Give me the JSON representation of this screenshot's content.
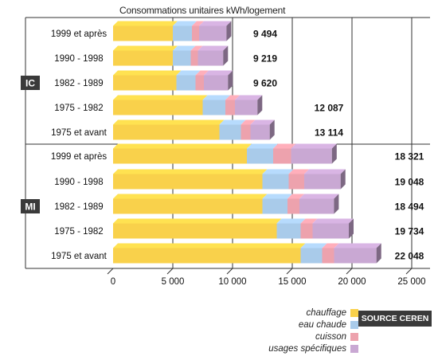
{
  "chart_data": {
    "type": "bar",
    "orientation": "horizontal",
    "stacked": true,
    "title": "Consommations unitaires kWh/logement",
    "source": "SOURCE CEREN",
    "xlim": [
      0,
      25000
    ],
    "xticks": [
      "0",
      "5 000",
      "10 000",
      "15 000",
      "20 000",
      "25 000"
    ],
    "xtick_values": [
      0,
      5000,
      10000,
      15000,
      20000,
      25000
    ],
    "grid": true,
    "legend_position": "bottom-right",
    "groups": [
      {
        "name": "IC",
        "categories": [
          "1999 et après",
          "1990 - 1998",
          "1982 - 1989",
          "1975 - 1982",
          "1975 et avant"
        ]
      },
      {
        "name": "MI",
        "categories": [
          "1999 et après",
          "1990 - 1998",
          "1982 - 1989",
          "1975 - 1982",
          "1975 et avant"
        ]
      }
    ],
    "series": [
      {
        "name": "chauffage",
        "color": "#f9d14b",
        "values": [
          5000,
          5000,
          5300,
          7500,
          8900,
          11200,
          12500,
          12500,
          13700,
          15700
        ]
      },
      {
        "name": "eau chaude",
        "color": "#a9cbea",
        "values": [
          1600,
          1500,
          1600,
          1900,
          1800,
          2200,
          2200,
          2100,
          2000,
          1800
        ]
      },
      {
        "name": "cuisson",
        "color": "#eda2ad",
        "values": [
          600,
          600,
          700,
          800,
          800,
          1500,
          1300,
          1000,
          1000,
          1000
        ]
      },
      {
        "name": "usages spécifiques",
        "color": "#c9a8d3",
        "values": [
          2294,
          2119,
          2020,
          1887,
          1614,
          3421,
          3048,
          2894,
          3034,
          3548
        ]
      }
    ],
    "totals": [
      9494,
      9219,
      9620,
      12087,
      13114,
      18321,
      19048,
      18494,
      19734,
      22048
    ],
    "total_labels": [
      "9 494",
      "9 219",
      "9 620",
      "12 087",
      "13 114",
      "18 321",
      "19 048",
      "18 494",
      "19 734",
      "22 048"
    ]
  }
}
